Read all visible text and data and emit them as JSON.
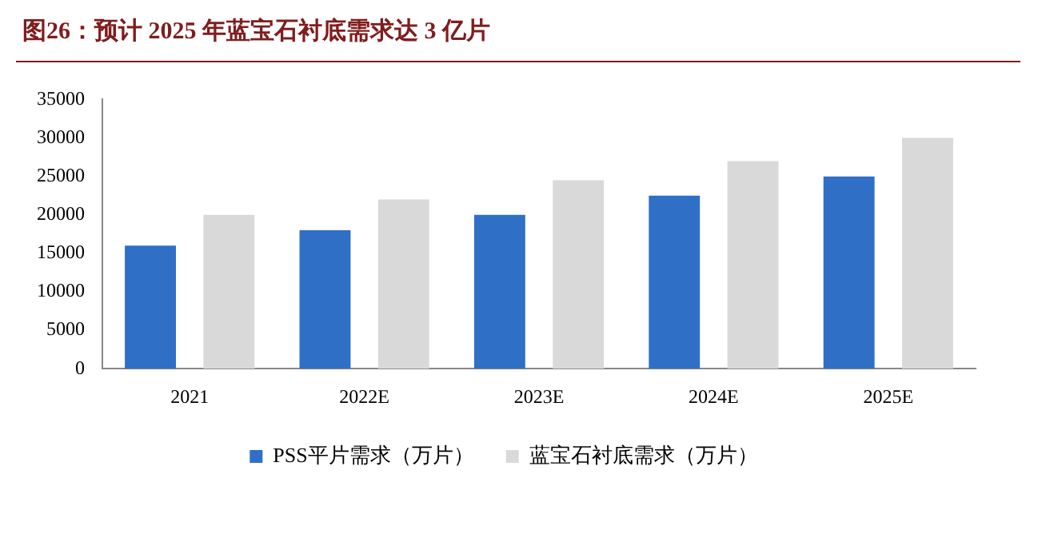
{
  "chart_data": {
    "type": "bar",
    "title": "图26：预计 2025 年蓝宝石衬底需求达 3 亿片",
    "categories": [
      "2021",
      "2022E",
      "2023E",
      "2024E",
      "2025E"
    ],
    "series": [
      {
        "name": "PSS平片需求（万片）",
        "color": "#2f6fc6",
        "values": [
          16000,
          18000,
          20000,
          22500,
          25000
        ]
      },
      {
        "name": "蓝宝石衬底需求（万片）",
        "color": "#d9d9d9",
        "values": [
          20000,
          22000,
          24500,
          27000,
          30000
        ]
      }
    ],
    "ylim": [
      0,
      35000
    ],
    "yticks": [
      0,
      5000,
      10000,
      15000,
      20000,
      25000,
      30000,
      35000
    ],
    "grid": false,
    "legend": "bottom"
  }
}
